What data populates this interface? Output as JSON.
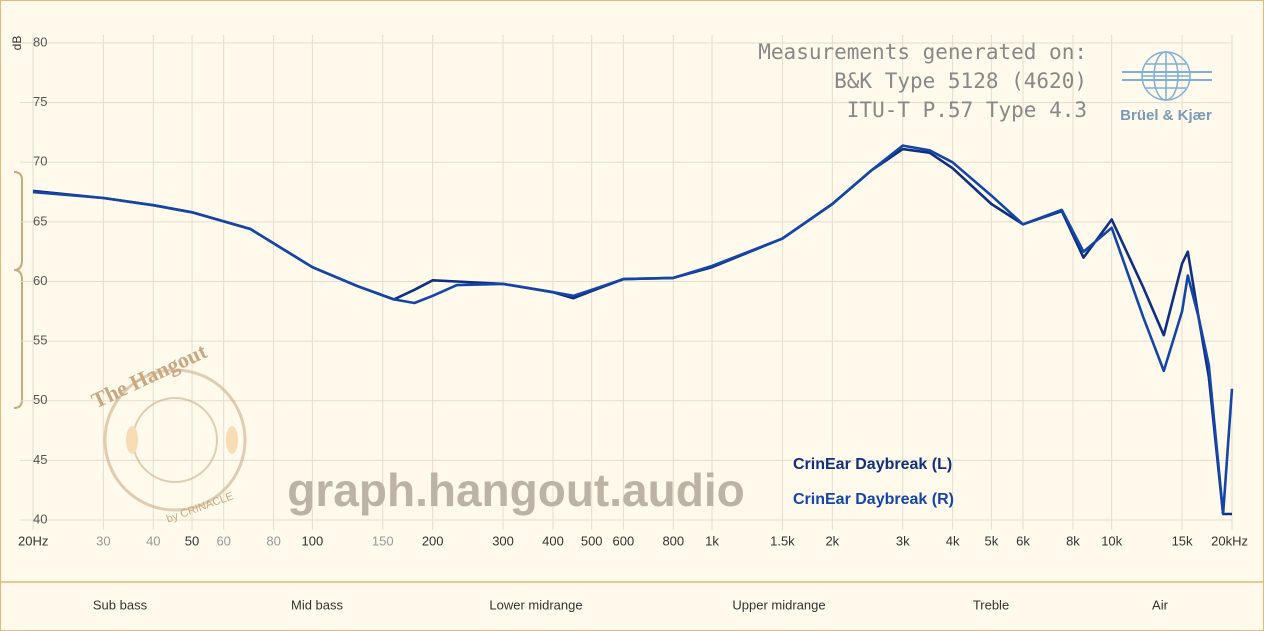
{
  "chart_data": {
    "type": "line",
    "y_label": "dB",
    "annotation_lines": [
      "Measurements generated on:",
      "B&K Type 5128 (4620)",
      "ITU-T P.57 Type 4.3"
    ],
    "logo_text": "Brüel & Kjær",
    "watermark": "graph.hangout.audio",
    "badge_title": "The Hangout",
    "badge_byline": "by CRINACLE",
    "bands": [
      "Sub bass",
      "Mid bass",
      "Lower midrange",
      "Upper midrange",
      "Treble",
      "Air"
    ],
    "log_x": true,
    "grid": true,
    "xlim": [
      20,
      20000
    ],
    "ylim": [
      40,
      80
    ],
    "xticks": [
      {
        "value": 20,
        "label": "20Hz"
      },
      30,
      40,
      50,
      60,
      80,
      100,
      150,
      200,
      300,
      400,
      500,
      600,
      800,
      {
        "value": 1000,
        "label": "1k"
      },
      {
        "value": 1500,
        "label": "1.5k"
      },
      {
        "value": 2000,
        "label": "2k"
      },
      {
        "value": 3000,
        "label": "3k"
      },
      {
        "value": 4000,
        "label": "4k"
      },
      {
        "value": 5000,
        "label": "5k"
      },
      {
        "value": 6000,
        "label": "6k"
      },
      {
        "value": 8000,
        "label": "8k"
      },
      {
        "value": 10000,
        "label": "10k"
      },
      {
        "value": 15000,
        "label": "15k"
      },
      {
        "value": 20000,
        "label": "20kHz"
      }
    ],
    "yticks": [
      40,
      45,
      50,
      55,
      60,
      65,
      70,
      75,
      80
    ],
    "x": [
      20,
      30,
      40,
      50,
      70,
      100,
      130,
      160,
      180,
      200,
      230,
      300,
      400,
      450,
      500,
      600,
      800,
      1000,
      1500,
      2000,
      2500,
      3000,
      3500,
      4000,
      5000,
      6000,
      7500,
      8500,
      10000,
      12000,
      13500,
      15000,
      15500,
      16500,
      17500,
      19000,
      20000
    ],
    "series": [
      {
        "name": "CrinEar Daybreak (L)",
        "color": "#0f2f80",
        "values": [
          67.6,
          67.0,
          66.4,
          65.8,
          64.4,
          61.2,
          59.6,
          58.5,
          59.3,
          60.1,
          60.0,
          59.8,
          59.1,
          58.6,
          59.2,
          60.2,
          60.3,
          61.2,
          63.6,
          66.5,
          69.3,
          71.1,
          70.8,
          69.5,
          66.5,
          64.8,
          65.9,
          62.0,
          65.2,
          59.5,
          55.5,
          61.5,
          62.5,
          57.0,
          52.0,
          40.5,
          40.5
        ]
      },
      {
        "name": "CrinEar Daybreak (R)",
        "color": "#1446aa",
        "values": [
          67.5,
          67.0,
          66.4,
          65.8,
          64.4,
          61.2,
          59.6,
          58.5,
          58.2,
          58.8,
          59.7,
          59.8,
          59.1,
          58.8,
          59.3,
          60.2,
          60.3,
          61.3,
          63.6,
          66.5,
          69.3,
          71.4,
          71.0,
          70.0,
          67.2,
          64.8,
          66.0,
          62.5,
          64.5,
          57.0,
          52.5,
          57.5,
          60.5,
          57.0,
          53.0,
          40.5,
          51.0
        ]
      }
    ]
  }
}
